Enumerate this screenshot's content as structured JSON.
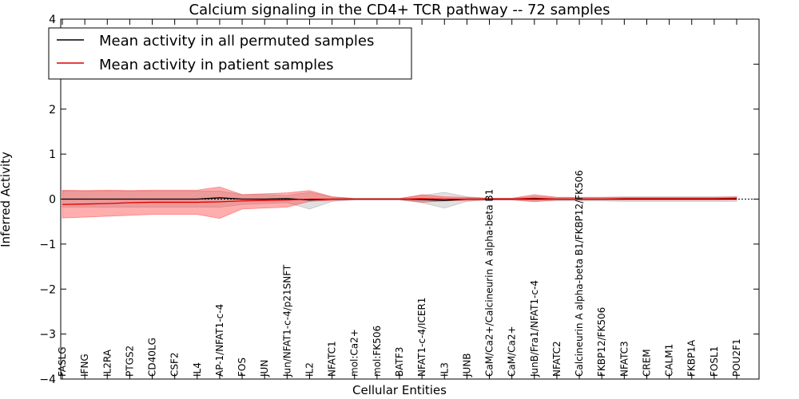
{
  "chart_data": {
    "type": "line",
    "title": "Calcium signaling in the CD4+ TCR pathway -- 72 samples",
    "xlabel": "Cellular Entities",
    "ylabel": "Inferred Activity",
    "ylim": [
      -4,
      4
    ],
    "yticks": [
      -4,
      -3,
      -2,
      -1,
      0,
      1,
      2,
      3,
      4
    ],
    "ytick_labels": [
      "−4",
      "−3",
      "−2",
      "−1",
      "0",
      "1",
      "2",
      "3",
      "4"
    ],
    "grid": false,
    "legend_position": "upper-left",
    "categories": [
      "FASLG",
      "IFNG",
      "IL2RA",
      "PTGS2",
      "CD40LG",
      "CSF2",
      "IL4",
      "AP-1/NFAT1-c-4",
      "FOS",
      "JUN",
      "Jun/NFAT1-c-4/p21SNFT",
      "IL2",
      "NFATC1",
      "mol:Ca2+",
      "mol:FK506",
      "BATF3",
      "NFAT1-c-4/ICER1",
      "IL3",
      "JUNB",
      "CaM/Ca2+/Calcineurin A alpha-beta B1",
      "CaM/Ca2+",
      "JunB/Fra1/NFAT1-c-4",
      "NFATC2",
      "Calcineurin A alpha-beta B1/FKBP12/FK506",
      "FKBP12/FK506",
      "NFATC3",
      "CREM",
      "CALM1",
      "FKBP1A",
      "FOSL1",
      "POU2F1"
    ],
    "series": [
      {
        "name": "Mean activity in all permuted samples",
        "color": "#000000",
        "values": [
          0.0,
          0.0,
          0.0,
          0.0,
          0.0,
          0.0,
          0.0,
          0.03,
          0.0,
          0.0,
          0.01,
          -0.02,
          0.0,
          0.0,
          0.0,
          0.0,
          -0.01,
          -0.03,
          0.0,
          0.0,
          0.0,
          0.0,
          0.0,
          0.0,
          0.0,
          0.0,
          0.0,
          0.0,
          0.0,
          0.0,
          0.0
        ],
        "lower": [
          -0.18,
          -0.18,
          -0.18,
          -0.18,
          -0.18,
          -0.18,
          -0.18,
          -0.18,
          -0.12,
          -0.1,
          -0.08,
          -0.22,
          -0.05,
          -0.02,
          -0.02,
          -0.02,
          -0.08,
          -0.2,
          -0.05,
          -0.02,
          -0.02,
          -0.04,
          -0.04,
          -0.04,
          -0.04,
          -0.05,
          -0.05,
          -0.05,
          -0.05,
          -0.05,
          -0.05
        ],
        "upper": [
          0.18,
          0.18,
          0.18,
          0.18,
          0.18,
          0.18,
          0.18,
          0.18,
          0.1,
          0.1,
          0.08,
          0.15,
          0.05,
          0.02,
          0.02,
          0.02,
          0.08,
          0.15,
          0.05,
          0.02,
          0.02,
          0.06,
          0.04,
          0.04,
          0.04,
          0.05,
          0.05,
          0.05,
          0.05,
          0.05,
          0.05
        ],
        "band_color": "#999999"
      },
      {
        "name": "Mean activity in patient samples",
        "color": "#dd0000",
        "values": [
          -0.12,
          -0.11,
          -0.1,
          -0.08,
          -0.07,
          -0.07,
          -0.07,
          -0.06,
          -0.04,
          -0.03,
          -0.02,
          0.0,
          0.0,
          0.0,
          0.0,
          0.0,
          0.01,
          0.0,
          0.0,
          0.0,
          0.0,
          0.02,
          0.0,
          0.0,
          0.0,
          0.01,
          0.01,
          0.01,
          0.01,
          0.01,
          0.02
        ],
        "lower": [
          -0.42,
          -0.4,
          -0.38,
          -0.36,
          -0.34,
          -0.34,
          -0.34,
          -0.43,
          -0.22,
          -0.2,
          -0.18,
          -0.05,
          -0.03,
          -0.01,
          -0.01,
          -0.01,
          -0.07,
          -0.04,
          -0.03,
          -0.02,
          -0.02,
          -0.06,
          -0.02,
          -0.02,
          -0.02,
          -0.02,
          -0.02,
          -0.02,
          -0.02,
          -0.02,
          -0.01
        ],
        "upper": [
          0.2,
          0.19,
          0.2,
          0.19,
          0.2,
          0.2,
          0.2,
          0.27,
          0.1,
          0.12,
          0.14,
          0.19,
          0.05,
          0.01,
          0.01,
          0.01,
          0.1,
          0.05,
          0.04,
          0.02,
          0.02,
          0.1,
          0.04,
          0.04,
          0.04,
          0.04,
          0.04,
          0.04,
          0.04,
          0.04,
          0.05
        ],
        "band_color": "#ff3333"
      }
    ]
  }
}
